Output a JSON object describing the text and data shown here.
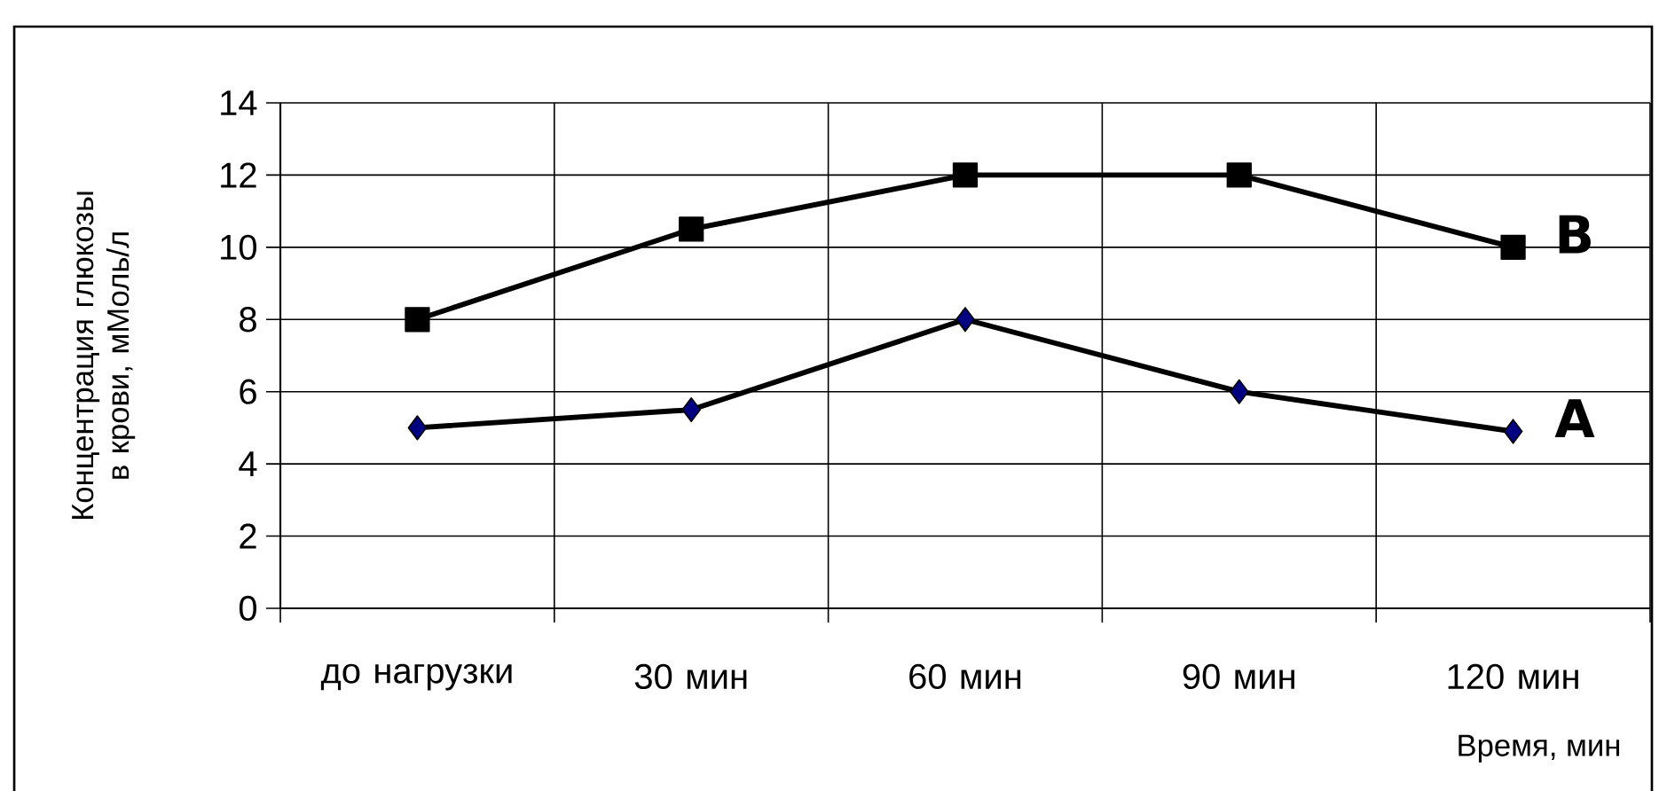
{
  "chart_data": {
    "type": "line",
    "ylabel": "Концентрация глюкозы в крови, мМоль/л",
    "xlabel": "Время, мин",
    "categories": [
      "до нагрузки",
      "30 мин",
      "60 мин",
      "90 мин",
      "120 мин"
    ],
    "series": [
      {
        "name": "B",
        "color": "#000000",
        "marker": "square",
        "values": [
          8,
          10.5,
          12,
          12,
          10
        ]
      },
      {
        "name": "A",
        "color": "#000080",
        "marker": "diamond",
        "values": [
          5,
          5.5,
          8,
          6,
          4.9
        ]
      }
    ],
    "ylim": [
      0,
      14
    ],
    "yticks": [
      0,
      2,
      4,
      6,
      8,
      10,
      12,
      14
    ],
    "grid": true,
    "line_style": "solid"
  }
}
